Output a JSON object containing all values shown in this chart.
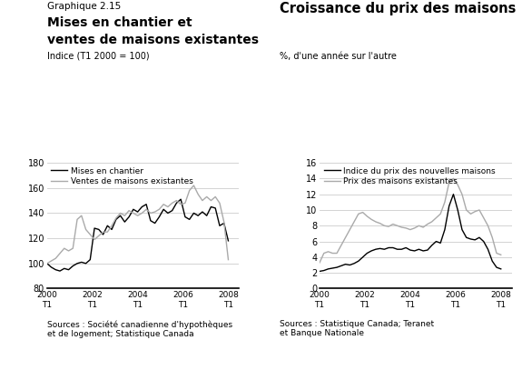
{
  "left_title_small": "Graphique 2.15",
  "left_title_bold1": "Mises en chantier et",
  "left_title_bold2": "ventes de maisons existantes",
  "left_ylabel": "Indice (T1 2000 = 100)",
  "left_ylim": [
    80,
    180
  ],
  "left_yticks": [
    80,
    100,
    120,
    140,
    160,
    180
  ],
  "left_legend": [
    "Mises en chantier",
    "Ventes de maisons existantes"
  ],
  "left_source": "Sources : Société canadienne d'hypothèques\net de logement; Statistique Canada",
  "right_title_bold": "Croissance du prix des maisons",
  "right_ylabel": "%, d'une année sur l'autre",
  "right_ylim": [
    0,
    16
  ],
  "right_yticks": [
    0,
    2,
    4,
    6,
    8,
    10,
    12,
    14,
    16
  ],
  "right_legend": [
    "Indice du prix des nouvelles maisons",
    "Prix des maisons existantes"
  ],
  "right_source": "Sources : Statistique Canada; Teranet\net Banque Nationale",
  "xtick_labels": [
    "2000\nT1",
    "2002\nT1",
    "2004\nT1",
    "2006\nT1",
    "2008\nT1"
  ],
  "left_black": [
    100,
    97,
    95,
    94,
    96,
    95,
    98,
    100,
    101,
    100,
    103,
    128,
    127,
    123,
    130,
    127,
    135,
    138,
    133,
    137,
    143,
    141,
    145,
    147,
    134,
    132,
    137,
    143,
    140,
    142,
    148,
    151,
    137,
    135,
    140,
    138,
    141,
    138,
    145,
    144,
    130,
    132,
    118
  ],
  "left_grey": [
    100,
    102,
    104,
    108,
    112,
    110,
    112,
    135,
    138,
    127,
    123,
    119,
    122,
    125,
    125,
    130,
    136,
    140,
    138,
    142,
    140,
    138,
    140,
    143,
    140,
    141,
    143,
    147,
    145,
    148,
    150,
    147,
    148,
    158,
    162,
    155,
    150,
    153,
    150,
    153,
    148,
    133,
    103
  ],
  "right_black": [
    2.2,
    2.3,
    2.5,
    2.6,
    2.7,
    2.9,
    3.1,
    3.0,
    3.2,
    3.5,
    4.0,
    4.5,
    4.8,
    5.0,
    5.1,
    5.0,
    5.2,
    5.2,
    5.0,
    5.0,
    5.2,
    4.9,
    4.8,
    5.0,
    4.8,
    4.9,
    5.5,
    6.0,
    5.8,
    7.5,
    10.5,
    12.0,
    10.0,
    7.5,
    6.5,
    6.3,
    6.2,
    6.5,
    6.0,
    5.0,
    3.5,
    2.7,
    2.5
  ],
  "right_grey": [
    3.3,
    4.5,
    4.7,
    4.5,
    4.5,
    5.5,
    6.5,
    7.5,
    8.5,
    9.5,
    9.7,
    9.2,
    8.8,
    8.5,
    8.3,
    8.0,
    7.9,
    8.2,
    8.0,
    7.8,
    7.7,
    7.5,
    7.7,
    8.0,
    7.8,
    8.2,
    8.5,
    9.0,
    9.5,
    11.0,
    13.5,
    14.0,
    13.2,
    12.0,
    10.0,
    9.5,
    9.8,
    10.0,
    9.0,
    8.0,
    6.5,
    4.5,
    4.3
  ],
  "line_colors": {
    "black": "#000000",
    "grey": "#aaaaaa"
  },
  "background_color": "#ffffff",
  "grid_color": "#cccccc"
}
